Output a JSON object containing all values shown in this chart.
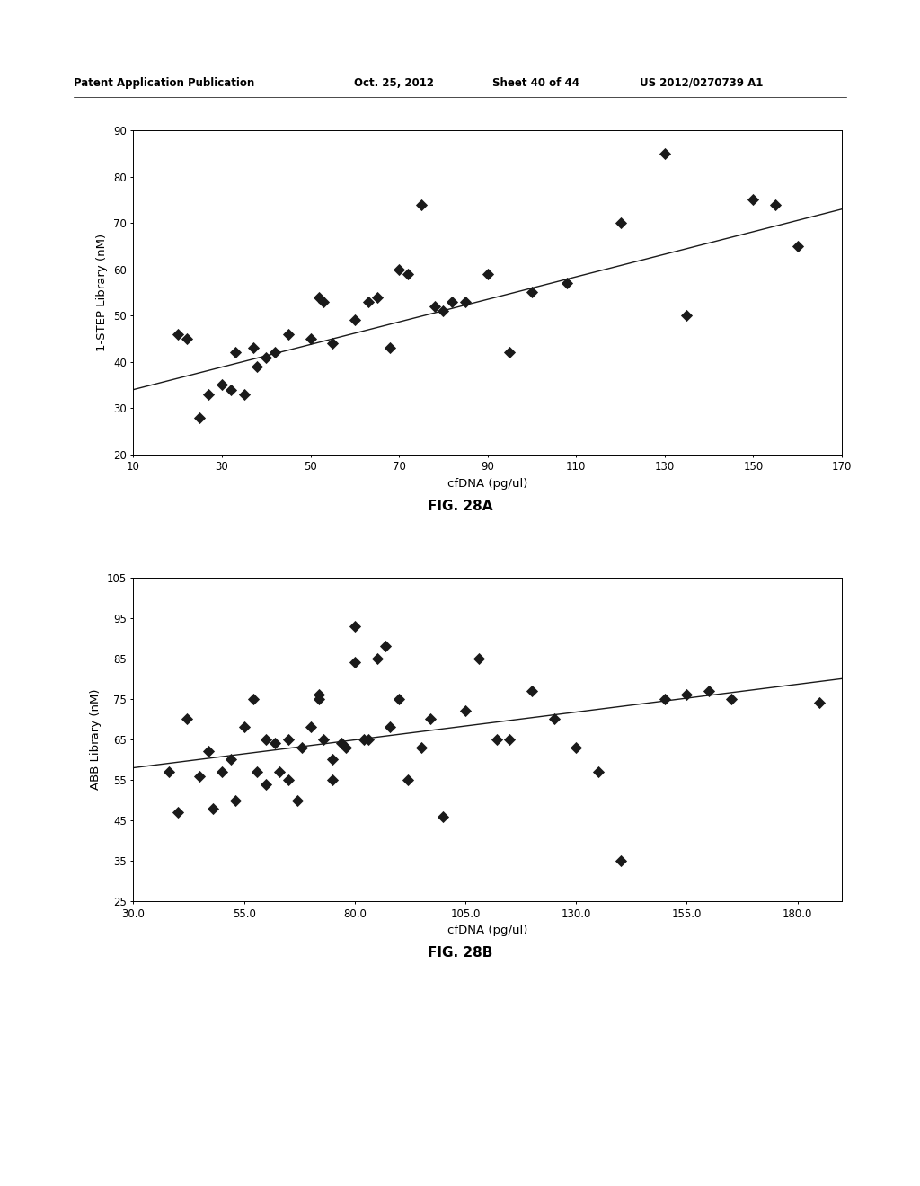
{
  "fig28a": {
    "xlabel": "cfDNA (pg/ul)",
    "ylabel": "1-STEP Library (nM)",
    "xlim": [
      10,
      170
    ],
    "ylim": [
      20,
      90
    ],
    "xticks": [
      10,
      30,
      50,
      70,
      90,
      110,
      130,
      150,
      170
    ],
    "yticks": [
      20,
      30,
      40,
      50,
      60,
      70,
      80,
      90
    ],
    "scatter_x": [
      20,
      22,
      25,
      27,
      30,
      32,
      33,
      35,
      37,
      38,
      40,
      42,
      45,
      50,
      52,
      53,
      55,
      60,
      63,
      65,
      68,
      70,
      72,
      75,
      78,
      80,
      82,
      85,
      90,
      95,
      100,
      108,
      120,
      130,
      135,
      150,
      155,
      160
    ],
    "scatter_y": [
      46,
      45,
      28,
      33,
      35,
      34,
      42,
      33,
      43,
      39,
      41,
      42,
      46,
      45,
      54,
      53,
      44,
      49,
      53,
      54,
      43,
      60,
      59,
      74,
      52,
      51,
      53,
      53,
      59,
      42,
      55,
      57,
      70,
      85,
      50,
      75,
      74,
      65
    ],
    "trendline_x": [
      10,
      170
    ],
    "trendline_y": [
      34,
      73
    ],
    "caption": "FIG. 28A"
  },
  "fig28b": {
    "xlabel": "cfDNA (pg/ul)",
    "ylabel": "ABB Library (nM)",
    "xlim": [
      30.0,
      190.0
    ],
    "ylim": [
      25,
      105
    ],
    "xticks": [
      30.0,
      55.0,
      80.0,
      105.0,
      130.0,
      155.0,
      180.0
    ],
    "yticks": [
      25,
      35,
      45,
      55,
      65,
      75,
      85,
      95,
      105
    ],
    "scatter_x": [
      38,
      40,
      42,
      45,
      47,
      48,
      50,
      52,
      53,
      55,
      57,
      58,
      60,
      60,
      62,
      63,
      65,
      65,
      67,
      68,
      70,
      72,
      72,
      73,
      75,
      75,
      77,
      78,
      80,
      80,
      82,
      83,
      85,
      87,
      88,
      90,
      92,
      95,
      97,
      100,
      105,
      108,
      112,
      115,
      120,
      125,
      130,
      135,
      140,
      150,
      155,
      160,
      165,
      185
    ],
    "scatter_y": [
      57,
      47,
      70,
      56,
      62,
      48,
      57,
      60,
      50,
      68,
      75,
      57,
      65,
      54,
      64,
      57,
      65,
      55,
      50,
      63,
      68,
      75,
      76,
      65,
      60,
      55,
      64,
      63,
      93,
      84,
      65,
      65,
      85,
      88,
      68,
      75,
      55,
      63,
      70,
      46,
      72,
      85,
      65,
      65,
      77,
      70,
      63,
      57,
      35,
      75,
      76,
      77,
      75,
      74
    ],
    "trendline_x": [
      30.0,
      190.0
    ],
    "trendline_y": [
      58,
      80
    ],
    "caption": "FIG. 28B"
  },
  "header": {
    "part1": "Patent Application Publication",
    "part2": "Oct. 25, 2012",
    "part3": "Sheet 40 of 44",
    "part4": "US 2012/0270739 A1"
  },
  "marker_color": "#1a1a1a",
  "line_color": "#1a1a1a",
  "background_color": "#ffffff",
  "fig_width": 10.24,
  "fig_height": 13.2
}
